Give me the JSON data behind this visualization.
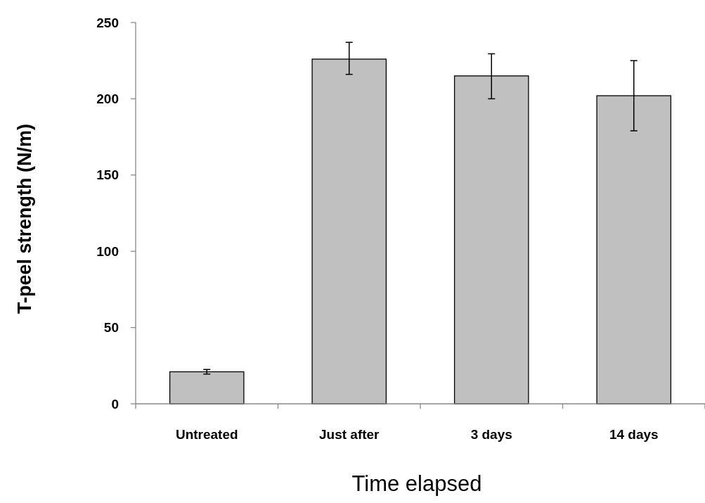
{
  "chart_data": {
    "type": "bar",
    "xlabel": "Time elapsed",
    "ylabel": "T-peel strength (N/m)",
    "categories": [
      "Untreated",
      "Just after",
      "3 days",
      "14 days"
    ],
    "values": [
      21,
      226,
      215,
      202
    ],
    "errors": [
      [
        19.5,
        22.5
      ],
      [
        216,
        237
      ],
      [
        200,
        229.5
      ],
      [
        179,
        225
      ]
    ],
    "color": "#c0c0c0",
    "ylim": [
      0,
      250
    ],
    "yticks": [
      0,
      50,
      100,
      150,
      200,
      250
    ],
    "grid": false
  }
}
